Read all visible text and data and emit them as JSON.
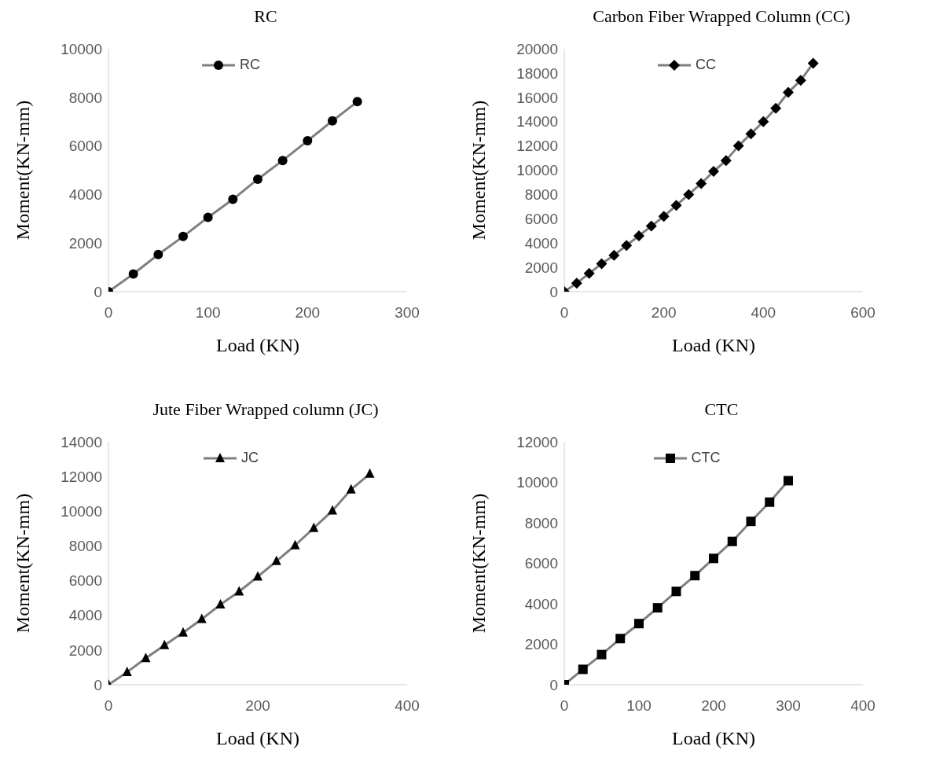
{
  "chart_data": [
    {
      "type": "line",
      "title": "RC",
      "xlabel": "Load (KN)",
      "ylabel": "Moment(KN-mm)",
      "xlim": [
        0,
        300
      ],
      "xticks": [
        0,
        100,
        200,
        300
      ],
      "ylim": [
        0,
        10000
      ],
      "yticks": [
        0,
        2000,
        4000,
        6000,
        8000,
        10000
      ],
      "grid": false,
      "legend": "top",
      "marker": "circle",
      "line_style": "solid",
      "x": [
        0,
        25,
        50,
        75,
        100,
        125,
        150,
        175,
        200,
        225,
        250
      ],
      "series": [
        {
          "name": "RC",
          "color": "#7f7f7f",
          "values": [
            0,
            730,
            1530,
            2270,
            3060,
            3800,
            4630,
            5400,
            6210,
            7030,
            7820
          ]
        }
      ]
    },
    {
      "type": "line",
      "title": "Carbon Fiber Wrapped Column (CC)",
      "xlabel": "Load (KN)",
      "ylabel": "Moment(KN-mm)",
      "xlim": [
        0,
        600
      ],
      "xticks": [
        0,
        200,
        400,
        600
      ],
      "ylim": [
        0,
        20000
      ],
      "yticks": [
        0,
        2000,
        4000,
        6000,
        8000,
        10000,
        12000,
        14000,
        16000,
        18000,
        20000
      ],
      "grid": false,
      "legend": "top",
      "marker": "diamond",
      "line_style": "solid",
      "x": [
        0,
        25,
        50,
        75,
        100,
        125,
        150,
        175,
        200,
        225,
        250,
        275,
        300,
        325,
        350,
        375,
        400,
        425,
        450,
        475,
        500
      ],
      "series": [
        {
          "name": "CC",
          "color": "#7f7f7f",
          "values": [
            0,
            700,
            1500,
            2300,
            3000,
            3800,
            4600,
            5400,
            6200,
            7100,
            8000,
            8900,
            9900,
            10800,
            12000,
            13000,
            14000,
            15100,
            16400,
            17400,
            18800
          ]
        }
      ]
    },
    {
      "type": "line",
      "title": "Jute Fiber Wrapped column (JC)",
      "xlabel": "Load (KN)",
      "ylabel": "Moment(KN-mm)",
      "xlim": [
        0,
        400
      ],
      "xticks": [
        0,
        200,
        400
      ],
      "ylim": [
        0,
        14000
      ],
      "yticks": [
        0,
        2000,
        4000,
        6000,
        8000,
        10000,
        12000,
        14000
      ],
      "grid": false,
      "legend": "top",
      "marker": "triangle",
      "line_style": "solid",
      "x": [
        0,
        25,
        50,
        75,
        100,
        125,
        150,
        175,
        200,
        225,
        250,
        275,
        300,
        325,
        350
      ],
      "series": [
        {
          "name": "JC",
          "color": "#7f7f7f",
          "values": [
            0,
            730,
            1530,
            2280,
            3000,
            3780,
            4620,
            5370,
            6230,
            7120,
            8030,
            9030,
            10030,
            11250,
            12150
          ]
        }
      ]
    },
    {
      "type": "line",
      "title": "CTC",
      "xlabel": "Load (KN)",
      "ylabel": "Moment(KN-mm)",
      "xlim": [
        0,
        400
      ],
      "xticks": [
        0,
        100,
        200,
        300,
        400
      ],
      "ylim": [
        0,
        12000
      ],
      "yticks": [
        0,
        2000,
        4000,
        6000,
        8000,
        10000,
        12000
      ],
      "grid": false,
      "legend": "top",
      "marker": "square",
      "line_style": "solid",
      "x": [
        0,
        25,
        50,
        75,
        100,
        125,
        150,
        175,
        200,
        225,
        250,
        275,
        300
      ],
      "series": [
        {
          "name": "CTC",
          "color": "#7f7f7f",
          "values": [
            0,
            760,
            1490,
            2280,
            3020,
            3800,
            4610,
            5390,
            6240,
            7080,
            8070,
            9020,
            10080
          ]
        }
      ]
    }
  ]
}
